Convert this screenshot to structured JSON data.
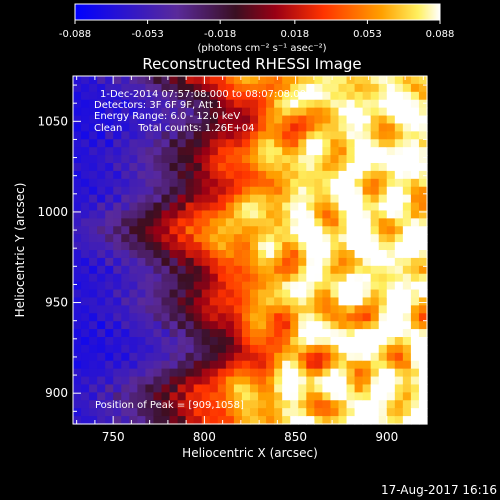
{
  "chart_data": {
    "type": "heatmap",
    "title": "Reconstructed RHESSI Image",
    "xlabel": "Heliocentric X (arcsec)",
    "ylabel": "Heliocentric Y (arcsec)",
    "xlim": [
      728,
      922
    ],
    "ylim": [
      883,
      1075
    ],
    "xticks": [
      750,
      800,
      850,
      900
    ],
    "yticks": [
      900,
      950,
      1000,
      1050
    ],
    "colorbar": {
      "min": -0.088,
      "max": 0.088,
      "ticks": [
        -0.088,
        -0.053,
        -0.018,
        0.018,
        0.053,
        0.088
      ],
      "tick_labels": [
        "-0.088",
        "-0.053",
        "-0.018",
        "0.018",
        "0.053",
        "0.088"
      ],
      "unit_label": "(photons cm⁻² s⁻¹ asec⁻²)"
    },
    "annotations": [
      "1-Dec-2014 07:57:08.000 to 08:07:08.000",
      "Detectors: 3F 6F 9F, Att 1",
      "Energy Range: 6.0 - 12.0 keV",
      "Clean     Total counts: 1.26E+04"
    ],
    "peak_label": "Position of Peak = [909,1058]",
    "peak": [
      909,
      1058
    ],
    "grid": false,
    "field_description": "Values increase from about -0.08 on the left (X below ~800) to about 0.088 on the right (X above ~870), with ring-shaped ripples across the bright region."
  },
  "timestamp": "17-Aug-2017 16:16",
  "colors": {
    "background": "#000000",
    "text": "#ffffff",
    "colormap": [
      "#0000ff",
      "#3b1fd0",
      "#5a2a9a",
      "#3a0f22",
      "#b3001a",
      "#ff3300",
      "#ff9900",
      "#ffee00",
      "#ffffff"
    ]
  }
}
